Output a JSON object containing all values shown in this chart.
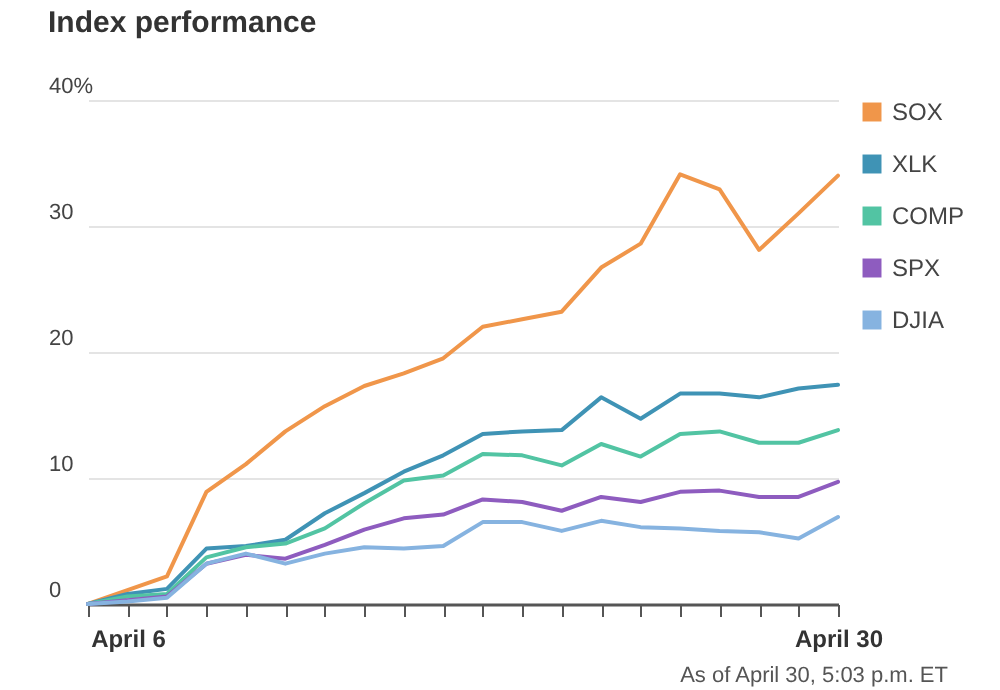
{
  "chart_data": {
    "type": "line",
    "title": "Index performance",
    "categories": [
      null,
      "April 6",
      null,
      null,
      null,
      null,
      null,
      null,
      null,
      null,
      null,
      null,
      null,
      null,
      null,
      null,
      null,
      null,
      null,
      "April 30"
    ],
    "series": [
      {
        "name": "SOX",
        "color": "#f0964a",
        "values": [
          0,
          1.1,
          2.2,
          8.9,
          11.1,
          13.7,
          15.7,
          17.3,
          18.3,
          19.5,
          22,
          22.6,
          23.2,
          26.7,
          28.6,
          34.1,
          32.9,
          28.1,
          31,
          34
        ]
      },
      {
        "name": "XLK",
        "color": "#3f93b5",
        "values": [
          0,
          0.8,
          1.2,
          4.4,
          4.6,
          5.1,
          7.2,
          8.8,
          10.5,
          11.8,
          13.5,
          13.7,
          13.8,
          16.4,
          14.7,
          16.7,
          16.7,
          16.4,
          17.1,
          17.4
        ]
      },
      {
        "name": "COMP",
        "color": "#52c4a3",
        "values": [
          0,
          0.6,
          0.8,
          3.7,
          4.5,
          4.8,
          6.0,
          8.0,
          9.8,
          10.2,
          11.9,
          11.8,
          11.0,
          12.7,
          11.7,
          13.5,
          13.7,
          12.8,
          12.8,
          13.8
        ]
      },
      {
        "name": "SPX",
        "color": "#8e5cbf",
        "values": [
          0,
          0.3,
          0.6,
          3.2,
          3.9,
          3.6,
          4.7,
          5.9,
          6.8,
          7.1,
          8.3,
          8.1,
          7.4,
          8.5,
          8.1,
          8.9,
          9.0,
          8.5,
          8.5,
          9.7
        ]
      },
      {
        "name": "DJIA",
        "color": "#86b3e0",
        "values": [
          0,
          0.2,
          0.5,
          3.2,
          4.0,
          3.2,
          4.0,
          4.5,
          4.4,
          4.6,
          6.5,
          6.5,
          5.8,
          6.6,
          6.1,
          6.0,
          5.8,
          5.7,
          5.2,
          6.9
        ]
      }
    ],
    "ylim": [
      0,
      40
    ],
    "yticks": [
      0,
      10,
      20,
      30,
      {
        "value": 40,
        "label": "40%"
      }
    ],
    "grid": "y",
    "legend": "right",
    "annotations": [
      "As of April 30, 5:03 p.m. ET"
    ]
  }
}
